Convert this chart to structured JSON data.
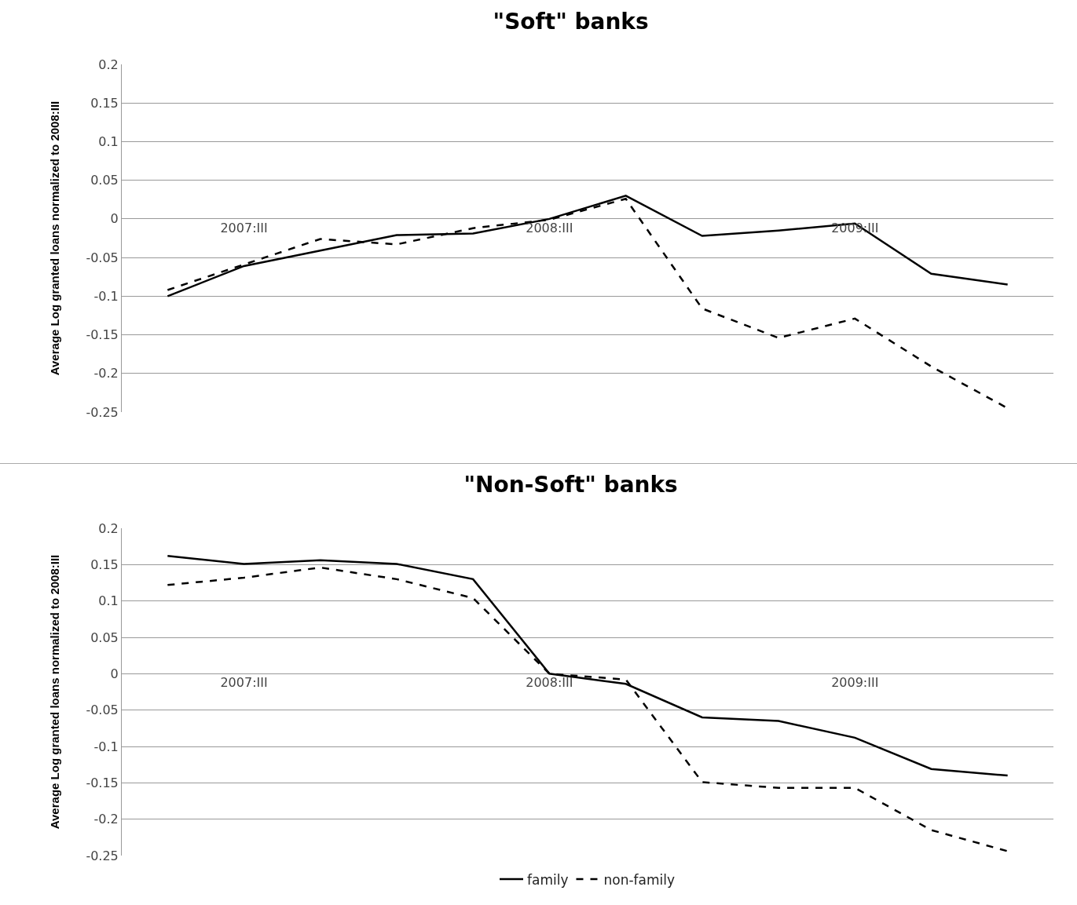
{
  "chart_data": [
    {
      "type": "line",
      "title": "\"Soft\" banks",
      "ylabel": "Average Log granted loans normalized to 2008:III",
      "categories": [
        null,
        "2007:III",
        null,
        null,
        null,
        "2008:III",
        null,
        null,
        null,
        "2009:III",
        null,
        null
      ],
      "ylim": [
        -0.25,
        0.2
      ],
      "yticks": [
        -0.25,
        -0.2,
        -0.15,
        -0.1,
        -0.05,
        0,
        0.05,
        0.1,
        0.15,
        0.2
      ],
      "grid": "y",
      "marker": "none",
      "series": [
        {
          "color": "#000000",
          "line_style": "solid",
          "values": [
            -0.1,
            -0.061,
            -0.041,
            -0.021,
            -0.019,
            0,
            0.03,
            -0.022,
            -0.015,
            -0.006,
            -0.071,
            -0.085
          ]
        },
        {
          "color": "#000000",
          "line_style": "dashed",
          "values": [
            -0.092,
            -0.059,
            -0.026,
            -0.033,
            -0.012,
            -0.001,
            0.026,
            -0.116,
            -0.154,
            -0.129,
            -0.191,
            -0.245
          ]
        }
      ]
    },
    {
      "type": "line",
      "title": "\"Non-Soft\" banks",
      "ylabel": "Average Log granted loans normalized to 2008:III",
      "categories": [
        null,
        "2007:III",
        null,
        null,
        null,
        "2008:III",
        null,
        null,
        null,
        "2009:III",
        null,
        null
      ],
      "ylim": [
        -0.25,
        0.2
      ],
      "yticks": [
        -0.25,
        -0.2,
        -0.15,
        -0.1,
        -0.05,
        0,
        0.05,
        0.1,
        0.15,
        0.2
      ],
      "grid": "y",
      "marker": "none",
      "legend": "bottom",
      "series": [
        {
          "name": "family",
          "color": "#000000",
          "line_style": "solid",
          "values": [
            0.162,
            0.151,
            0.156,
            0.151,
            0.13,
            0,
            -0.014,
            -0.06,
            -0.065,
            -0.088,
            -0.131,
            -0.14
          ]
        },
        {
          "name": "non-family",
          "color": "#000000",
          "line_style": "dashed",
          "values": [
            0.122,
            0.132,
            0.146,
            0.13,
            0.104,
            0,
            -0.008,
            -0.149,
            -0.157,
            -0.157,
            -0.215,
            -0.244
          ]
        }
      ]
    }
  ]
}
